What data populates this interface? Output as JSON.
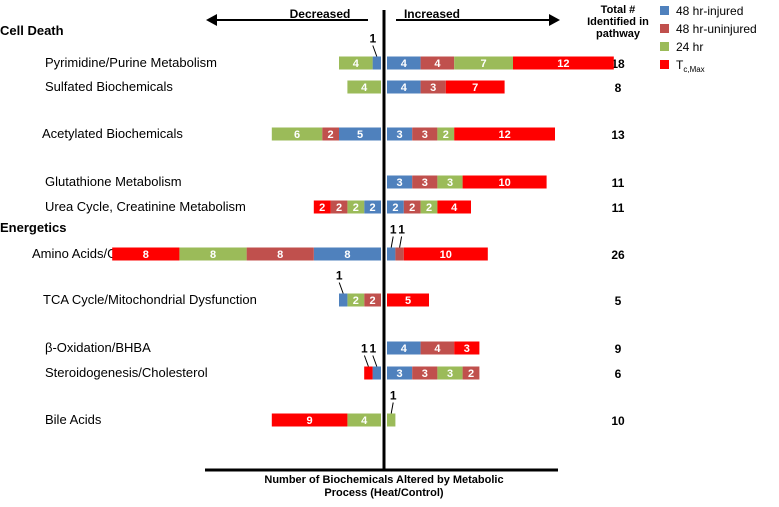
{
  "colors": {
    "inj48": "#4f81bd",
    "uninj48": "#c0504d",
    "hr24": "#9bbb59",
    "tcmax": "#ff0000",
    "text": "#000000",
    "bar_label": "#ffffff"
  },
  "chart_data": {
    "type": "bar",
    "orientation": "horizontal",
    "layout": "diverging-stacked",
    "title": "",
    "xlabel": "Number of Biochemicals Altered by Metabolic Process (Heat/Control)",
    "direction_labels": {
      "decreased": "Decreased",
      "increased": "Increased"
    },
    "total_header": "Total # Identified in pathway",
    "legend_position": "top-right",
    "legend": [
      {
        "key": "inj48",
        "label": "48 hr-injured"
      },
      {
        "key": "uninj48",
        "label": "48 hr-uninjured"
      },
      {
        "key": "hr24",
        "label": "24 hr"
      },
      {
        "key": "tcmax",
        "label": "T",
        "sub": "c,Max"
      }
    ],
    "groups": [
      {
        "label": "Cell Death",
        "before_row": 0
      },
      {
        "label": "Energetics",
        "before_row": 6
      }
    ],
    "rows": [
      {
        "label": "Pyrimidine/Purine Metabolism",
        "total": "18",
        "decreased": [
          {
            "key": "inj48",
            "value": 1,
            "label": "1"
          },
          {
            "key": "hr24",
            "value": 4,
            "label": "4"
          }
        ],
        "increased": [
          {
            "key": "inj48",
            "value": 4,
            "label": "4"
          },
          {
            "key": "uninj48",
            "value": 4,
            "label": "4"
          },
          {
            "key": "hr24",
            "value": 7,
            "label": "7"
          },
          {
            "key": "tcmax",
            "value": 12,
            "label": "12"
          }
        ]
      },
      {
        "label": "Sulfated Biochemicals",
        "total": "8",
        "decreased": [
          {
            "key": "hr24",
            "value": 4,
            "label": "4"
          }
        ],
        "increased": [
          {
            "key": "inj48",
            "value": 4,
            "label": "4"
          },
          {
            "key": "uninj48",
            "value": 3,
            "label": "3"
          },
          {
            "key": "tcmax",
            "value": 7,
            "label": "7"
          }
        ]
      },
      {
        "label": "Acetylated Biochemicals",
        "total": "13",
        "decreased": [
          {
            "key": "inj48",
            "value": 5,
            "label": "5"
          },
          {
            "key": "uninj48",
            "value": 2,
            "label": "2"
          },
          {
            "key": "hr24",
            "value": 6,
            "label": "6"
          }
        ],
        "increased": [
          {
            "key": "inj48",
            "value": 3,
            "label": "3"
          },
          {
            "key": "uninj48",
            "value": 3,
            "label": "3"
          },
          {
            "key": "hr24",
            "value": 2,
            "label": "2"
          },
          {
            "key": "tcmax",
            "value": 12,
            "label": "12"
          }
        ]
      },
      {
        "label": "Glutathione Metabolism",
        "total": "11",
        "decreased": [],
        "increased": [
          {
            "key": "inj48",
            "value": 3,
            "label": "3"
          },
          {
            "key": "uninj48",
            "value": 3,
            "label": "3"
          },
          {
            "key": "hr24",
            "value": 3,
            "label": "3"
          },
          {
            "key": "tcmax",
            "value": 10,
            "label": "10"
          }
        ]
      },
      {
        "label": "Urea Cycle, Creatinine Metabolism",
        "total": "11",
        "decreased": [
          {
            "key": "inj48",
            "value": 2,
            "label": "2"
          },
          {
            "key": "hr24",
            "value": 2,
            "label": "2"
          },
          {
            "key": "uninj48",
            "value": 2,
            "label": "2"
          },
          {
            "key": "tcmax",
            "value": 2,
            "label": "2"
          }
        ],
        "increased": [
          {
            "key": "inj48",
            "value": 2,
            "label": "2"
          },
          {
            "key": "uninj48",
            "value": 2,
            "label": "2"
          },
          {
            "key": "hr24",
            "value": 2,
            "label": "2"
          },
          {
            "key": "tcmax",
            "value": 4,
            "label": "4"
          }
        ]
      },
      {
        "label": "Amino Acids/Glycolysis",
        "total": "26",
        "decreased": [
          {
            "key": "inj48",
            "value": 8,
            "label": "8"
          },
          {
            "key": "uninj48",
            "value": 8,
            "label": "8"
          },
          {
            "key": "hr24",
            "value": 8,
            "label": "8"
          },
          {
            "key": "tcmax",
            "value": 8,
            "label": "8"
          }
        ],
        "increased": [
          {
            "key": "inj48",
            "value": 1,
            "label": "1"
          },
          {
            "key": "uninj48",
            "value": 1,
            "label": "1"
          },
          {
            "key": "tcmax",
            "value": 10,
            "label": "10"
          }
        ]
      },
      {
        "label": "TCA Cycle/Mitochondrial Dysfunction",
        "total": "5",
        "decreased": [
          {
            "key": "uninj48",
            "value": 2,
            "label": "2"
          },
          {
            "key": "hr24",
            "value": 2,
            "label": "2"
          },
          {
            "key": "inj48",
            "value": 1,
            "label": "1"
          }
        ],
        "increased": [
          {
            "key": "tcmax",
            "value": 5,
            "label": "5"
          }
        ]
      },
      {
        "label": "β-Oxidation/BHBA",
        "total": "9",
        "decreased": [],
        "increased": [
          {
            "key": "inj48",
            "value": 4,
            "label": "4"
          },
          {
            "key": "uninj48",
            "value": 4,
            "label": "4"
          },
          {
            "key": "tcmax",
            "value": 3,
            "label": "3"
          }
        ]
      },
      {
        "label": "Steroidogenesis/Cholesterol",
        "total": "6",
        "decreased": [
          {
            "key": "inj48",
            "value": 1,
            "label": "1"
          },
          {
            "key": "tcmax",
            "value": 1,
            "label": "1"
          }
        ],
        "increased": [
          {
            "key": "inj48",
            "value": 3,
            "label": "3"
          },
          {
            "key": "uninj48",
            "value": 3,
            "label": "3"
          },
          {
            "key": "hr24",
            "value": 3,
            "label": "3"
          },
          {
            "key": "uninj48",
            "value": 2,
            "label": "2"
          }
        ]
      },
      {
        "label": "Bile Acids",
        "total": "10",
        "decreased": [
          {
            "key": "hr24",
            "value": 4,
            "label": "4"
          },
          {
            "key": "tcmax",
            "value": 9,
            "label": "9"
          }
        ],
        "increased": [
          {
            "key": "hr24",
            "value": 1,
            "label": "1"
          }
        ]
      }
    ]
  }
}
